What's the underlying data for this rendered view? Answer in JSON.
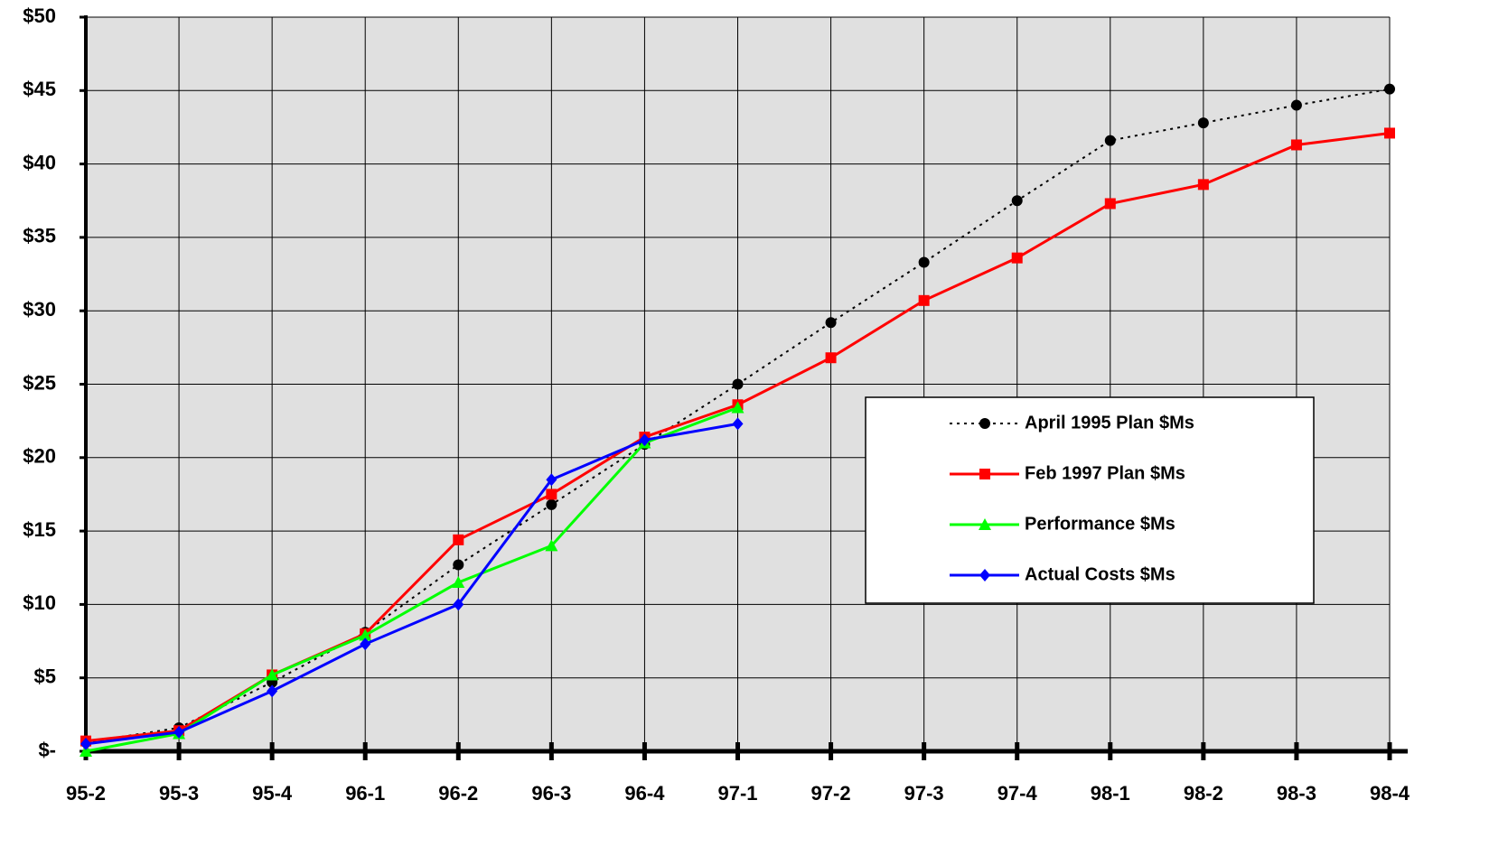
{
  "chart_data": {
    "type": "line",
    "categories": [
      "95-2",
      "95-3",
      "95-4",
      "96-1",
      "96-2",
      "96-3",
      "96-4",
      "97-1",
      "97-2",
      "97-3",
      "97-4",
      "98-1",
      "98-2",
      "98-3",
      "98-4"
    ],
    "series": [
      {
        "name": "April 1995 Plan $Ms",
        "color": "#000000",
        "marker": "circle",
        "linestyle": "dotted",
        "values": [
          0.6,
          1.6,
          4.7,
          8.1,
          12.7,
          16.8,
          20.9,
          25.0,
          29.2,
          33.3,
          37.5,
          41.6,
          42.8,
          44.0,
          45.1
        ]
      },
      {
        "name": "Feb 1997 Plan $Ms",
        "color": "#ff0000",
        "marker": "square",
        "linestyle": "solid",
        "values": [
          0.7,
          1.4,
          5.2,
          8.0,
          14.4,
          17.5,
          21.4,
          23.6,
          26.8,
          30.7,
          33.6,
          37.3,
          38.6,
          41.3,
          42.1
        ]
      },
      {
        "name": "Performance $Ms",
        "color": "#00ff00",
        "marker": "triangle",
        "linestyle": "solid",
        "values": [
          0.0,
          1.2,
          5.2,
          7.9,
          11.5,
          14.0,
          21.0,
          23.4,
          null,
          null,
          null,
          null,
          null,
          null,
          null
        ]
      },
      {
        "name": "Actual Costs $Ms",
        "color": "#0000ff",
        "marker": "diamond",
        "linestyle": "solid",
        "values": [
          0.5,
          1.3,
          4.1,
          7.3,
          10.0,
          18.5,
          21.2,
          22.3,
          null,
          null,
          null,
          null,
          null,
          null,
          null
        ]
      }
    ],
    "ylim": [
      0,
      50
    ],
    "yticks": [
      {
        "value": 0,
        "label": "$-"
      },
      {
        "value": 5,
        "label": "$5"
      },
      {
        "value": 10,
        "label": "$10"
      },
      {
        "value": 15,
        "label": "$15"
      },
      {
        "value": 20,
        "label": "$20"
      },
      {
        "value": 25,
        "label": "$25"
      },
      {
        "value": 30,
        "label": "$30"
      },
      {
        "value": 35,
        "label": "$35"
      },
      {
        "value": 40,
        "label": "$40"
      },
      {
        "value": 45,
        "label": "$45"
      },
      {
        "value": 50,
        "label": "$50"
      }
    ],
    "grid": true,
    "legend": "right",
    "plot_background": "#e0e0e0"
  }
}
